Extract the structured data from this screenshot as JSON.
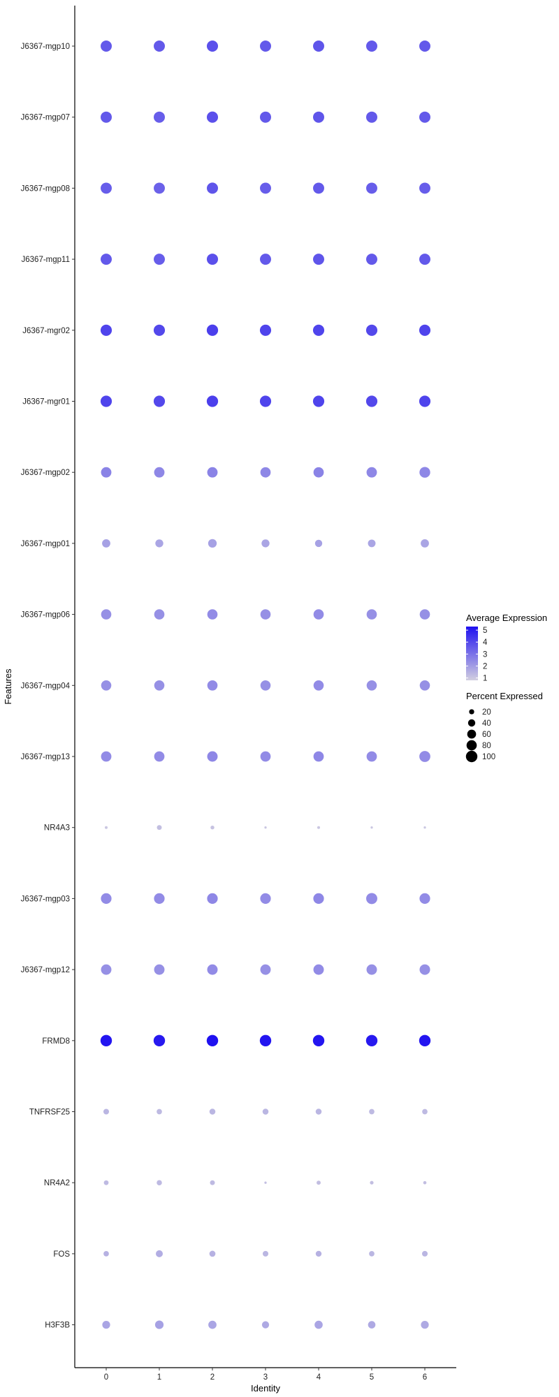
{
  "chart_data": {
    "type": "dot",
    "x": {
      "label": "Identity",
      "categories": [
        "0",
        "1",
        "2",
        "3",
        "4",
        "5",
        "6"
      ]
    },
    "y": {
      "label": "Features",
      "categories": [
        "J6367-mgp10",
        "J6367-mgp07",
        "J6367-mgp08",
        "J6367-mgp11",
        "J6367-mgr02",
        "J6367-mgr01",
        "J6367-mgp02",
        "J6367-mgp01",
        "J6367-mgp06",
        "J6367-mgp04",
        "J6367-mgp13",
        "NR4A3",
        "J6367-mgp03",
        "J6367-mgp12",
        "FRMD8",
        "TNFRSF25",
        "NR4A2",
        "FOS",
        "H3F3B"
      ]
    },
    "avg_expression": [
      [
        3.6,
        3.6,
        3.8,
        3.6,
        3.7,
        3.6,
        3.6
      ],
      [
        3.6,
        3.5,
        3.8,
        3.6,
        3.7,
        3.6,
        3.6
      ],
      [
        3.5,
        3.4,
        3.7,
        3.5,
        3.6,
        3.5,
        3.5
      ],
      [
        3.6,
        3.5,
        3.8,
        3.6,
        3.7,
        3.6,
        3.6
      ],
      [
        4.1,
        4.0,
        4.2,
        4.1,
        4.1,
        4.0,
        4.1
      ],
      [
        4.1,
        4.0,
        4.2,
        4.1,
        4.1,
        4.0,
        4.1
      ],
      [
        2.6,
        2.5,
        2.6,
        2.5,
        2.6,
        2.5,
        2.5
      ],
      [
        1.9,
        1.8,
        1.9,
        1.8,
        1.9,
        1.8,
        1.8
      ],
      [
        2.3,
        2.3,
        2.4,
        2.3,
        2.4,
        2.3,
        2.3
      ],
      [
        2.3,
        2.3,
        2.4,
        2.3,
        2.4,
        2.3,
        2.3
      ],
      [
        2.4,
        2.4,
        2.5,
        2.4,
        2.5,
        2.4,
        2.4
      ],
      [
        1.0,
        1.2,
        1.1,
        1.0,
        1.0,
        1.0,
        1.0
      ],
      [
        2.4,
        2.4,
        2.5,
        2.4,
        2.5,
        2.4,
        2.4
      ],
      [
        2.3,
        2.3,
        2.4,
        2.3,
        2.4,
        2.3,
        2.3
      ],
      [
        5.2,
        5.1,
        5.3,
        5.2,
        5.2,
        5.1,
        5.2
      ],
      [
        1.4,
        1.3,
        1.4,
        1.4,
        1.4,
        1.3,
        1.3
      ],
      [
        1.3,
        1.3,
        1.3,
        1.2,
        1.2,
        1.2,
        1.2
      ],
      [
        1.5,
        1.6,
        1.5,
        1.4,
        1.5,
        1.4,
        1.4
      ],
      [
        1.8,
        1.9,
        1.8,
        1.7,
        1.8,
        1.7,
        1.7
      ]
    ],
    "pct_expressed": [
      [
        95,
        95,
        96,
        95,
        95,
        95,
        95
      ],
      [
        95,
        95,
        96,
        95,
        95,
        95,
        95
      ],
      [
        94,
        94,
        95,
        94,
        94,
        94,
        94
      ],
      [
        95,
        95,
        96,
        95,
        95,
        95,
        95
      ],
      [
        97,
        97,
        98,
        97,
        97,
        97,
        97
      ],
      [
        97,
        97,
        98,
        97,
        97,
        97,
        97
      ],
      [
        82,
        82,
        82,
        81,
        81,
        82,
        88
      ],
      [
        52,
        48,
        56,
        48,
        40,
        44,
        52
      ],
      [
        80,
        80,
        80,
        80,
        80,
        80,
        80
      ],
      [
        79,
        79,
        80,
        79,
        79,
        79,
        79
      ],
      [
        82,
        81,
        83,
        81,
        81,
        81,
        92
      ],
      [
        6,
        18,
        11,
        4,
        6,
        4,
        4
      ],
      [
        86,
        86,
        86,
        86,
        86,
        94,
        86
      ],
      [
        83,
        83,
        83,
        83,
        83,
        83,
        84
      ],
      [
        100,
        100,
        100,
        100,
        100,
        100,
        100
      ],
      [
        24,
        22,
        27,
        27,
        27,
        22,
        22
      ],
      [
        17,
        21,
        18,
        4,
        13,
        10,
        8
      ],
      [
        22,
        37,
        28,
        24,
        26,
        22,
        24
      ],
      [
        47,
        55,
        51,
        39,
        50,
        42,
        47
      ]
    ],
    "legend": {
      "placement": "right",
      "color_title": "Average Expression",
      "color_ticks": [
        5,
        4,
        3,
        2,
        1
      ],
      "color_low": "#d2cfe0",
      "color_high": "#1f11f0",
      "color_range": [
        0.8,
        5.3
      ],
      "size_title": "Percent Expressed",
      "size_ticks": [
        20,
        40,
        60,
        80,
        100
      ]
    },
    "grid": false
  }
}
